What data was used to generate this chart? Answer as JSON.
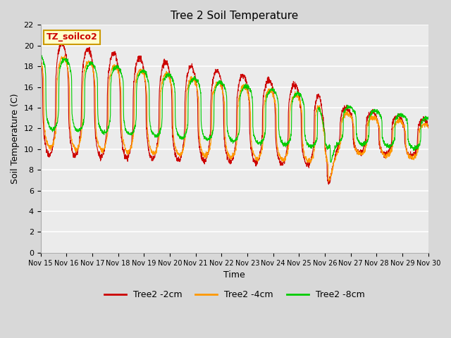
{
  "title": "Tree 2 Soil Temperature",
  "xlabel": "Time",
  "ylabel": "Soil Temperature (C)",
  "ylim": [
    0,
    22
  ],
  "yticks": [
    0,
    2,
    4,
    6,
    8,
    10,
    12,
    14,
    16,
    18,
    20,
    22
  ],
  "xlim": [
    0,
    360
  ],
  "x_tick_labels": [
    "Nov 15",
    "Nov 16",
    "Nov 17",
    "Nov 18",
    "Nov 19",
    "Nov 20",
    "Nov 21",
    "Nov 22",
    "Nov 23",
    "Nov 24",
    "Nov 25",
    "Nov 26",
    "Nov 27",
    "Nov 28",
    "Nov 29",
    "Nov 30"
  ],
  "x_tick_positions": [
    0,
    24,
    48,
    72,
    96,
    120,
    144,
    168,
    192,
    216,
    240,
    264,
    288,
    312,
    336,
    360
  ],
  "legend_label": "TZ_soilco2",
  "series_labels": [
    "Tree2 -2cm",
    "Tree2 -4cm",
    "Tree2 -8cm"
  ],
  "series_colors": [
    "#cc0000",
    "#ff9900",
    "#00cc00"
  ],
  "fig_facecolor": "#d8d8d8",
  "plot_bg_color": "#ebebeb",
  "title_fontsize": 11,
  "axis_fontsize": 9,
  "tick_fontsize": 8,
  "legend_box_facecolor": "#ffffcc",
  "legend_box_edgecolor": "#cc9900"
}
